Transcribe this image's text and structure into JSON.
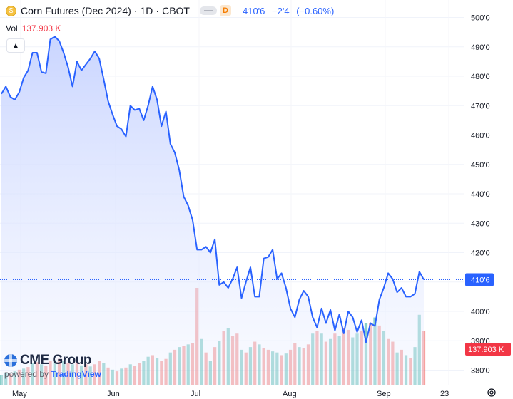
{
  "header": {
    "symbol_title": "Corn Futures (Dec 2024)",
    "interval": "1D",
    "exchange": "CBOT",
    "badge": "D",
    "last_price": "410'6",
    "change": "−2'4",
    "change_pct": "(−0.60%)"
  },
  "volume": {
    "label": "Vol",
    "value": "137.903 K"
  },
  "logo": {
    "brand": "CME Group",
    "powered_by": "powered by",
    "platform": "TradingView"
  },
  "price_axis": {
    "last_label": "410'6",
    "volume_label": "137.903 K"
  },
  "colors": {
    "line": "#2962ff",
    "up_volume": "#26a69a",
    "down_volume": "#ef5350",
    "area_top": "#c7d3ff"
  },
  "icons": [
    "coin-icon",
    "chevron-up-icon",
    "globe-icon",
    "gear-icon"
  ],
  "chart_data": {
    "type": "area",
    "x_tick_labels": [
      "May",
      "Jun",
      "Jul",
      "Aug",
      "Sep",
      "23"
    ],
    "y_tick_labels": [
      "500'0",
      "490'0",
      "480'0",
      "470'0",
      "460'0",
      "450'0",
      "440'0",
      "430'0",
      "420'0",
      "410'0",
      "400'0",
      "390'0",
      "380'0"
    ],
    "ylim": [
      377,
      503
    ],
    "grid": true,
    "series": [
      {
        "values": [
          474,
          476.5,
          473,
          472,
          474.5,
          479.5,
          482,
          488,
          488,
          481.5,
          481,
          492.5,
          493.5,
          492,
          488,
          483,
          476.5,
          485,
          482,
          484,
          486,
          488.5,
          486,
          479,
          471.5,
          467,
          463,
          462,
          459.5,
          470,
          468.5,
          469,
          465,
          470,
          476.5,
          472,
          463,
          468,
          457,
          454,
          448,
          439,
          436,
          431,
          421,
          421,
          422,
          420,
          424.5,
          409,
          410,
          408,
          411,
          415,
          404.5,
          410,
          415,
          405,
          405,
          418,
          418.5,
          421,
          411,
          413,
          408,
          401,
          398,
          404,
          407,
          405,
          398,
          394.5,
          401,
          396,
          400.5,
          393.5,
          399,
          392.5,
          400,
          398,
          393,
          397,
          389.5,
          396,
          395,
          404,
          408,
          413,
          411,
          406.5,
          408,
          405,
          405,
          406,
          413.5,
          410.8
        ]
      }
    ],
    "volume": {
      "values": [
        18,
        22,
        20,
        25,
        28,
        30,
        33,
        40,
        42,
        38,
        35,
        44,
        46,
        48,
        45,
        40,
        38,
        43,
        36,
        38,
        34,
        38,
        44,
        40,
        32,
        28,
        25,
        30,
        32,
        38,
        35,
        40,
        44,
        52,
        55,
        50,
        45,
        48,
        60,
        65,
        70,
        72,
        75,
        78,
        180,
        85,
        60,
        45,
        70,
        82,
        100,
        105,
        90,
        95,
        65,
        60,
        70,
        80,
        75,
        68,
        65,
        62,
        60,
        55,
        58,
        65,
        78,
        70,
        68,
        75,
        95,
        100,
        95,
        80,
        85,
        95,
        90,
        105,
        102,
        88,
        95,
        100,
        115,
        115,
        125,
        110,
        100,
        85,
        80,
        60,
        65,
        55,
        50,
        70,
        130,
        100
      ],
      "up": [
        1,
        1,
        0,
        1,
        0,
        1,
        0,
        1,
        0,
        1,
        0,
        0,
        1,
        0,
        1,
        0,
        1,
        0,
        1,
        0,
        1,
        0,
        0,
        1,
        0,
        1,
        0,
        1,
        0,
        1,
        0,
        0,
        1,
        1,
        0,
        1,
        0,
        0,
        1,
        0,
        1,
        0,
        1,
        0,
        0,
        1,
        0,
        1,
        0,
        1,
        0,
        1,
        0,
        0,
        1,
        0,
        1,
        0,
        1,
        0,
        0,
        1,
        1,
        0,
        1,
        0,
        0,
        1,
        0,
        0,
        1,
        0,
        1,
        0,
        1,
        0,
        1,
        0,
        0,
        1,
        1,
        0,
        1,
        0,
        1,
        0,
        1,
        0,
        0,
        1,
        0,
        1,
        0,
        1,
        1,
        0
      ]
    }
  }
}
